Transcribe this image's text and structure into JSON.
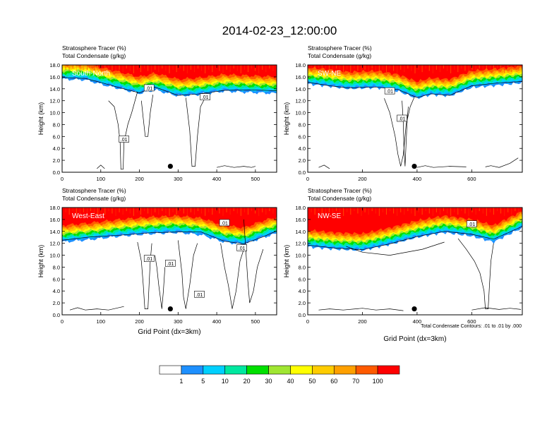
{
  "figure": {
    "title": "2014-02-23_12:00:00",
    "contour_note": "Total Condensate Contours: .01 to .01 by .000"
  },
  "chart_data": [
    {
      "type": "heatmap",
      "id": "south-north",
      "panel_label": "South-North",
      "subtitle_line1": "Stratosphere Tracer   (%)",
      "subtitle_line2": "Total Condensate   (g/kg)",
      "ylabel": "Height (km)",
      "xlabel": "",
      "xlim": [
        0,
        555
      ],
      "ylim": [
        0,
        18
      ],
      "xticks": [
        0,
        100,
        200,
        300,
        400,
        500
      ],
      "yticks": [
        "0.0",
        "2.0",
        "4.0",
        "6.0",
        "8.0",
        "10.0",
        "12.0",
        "14.0",
        "16.0",
        "18.0"
      ],
      "contour_labels": [
        ".01",
        ".01",
        ".01"
      ],
      "marker": {
        "x": 280,
        "y": 1.0
      },
      "band": [
        {
          "x": 0,
          "y": 15.6
        },
        {
          "x": 60,
          "y": 15.5
        },
        {
          "x": 110,
          "y": 14.6
        },
        {
          "x": 150,
          "y": 14.0
        },
        {
          "x": 200,
          "y": 13.2
        },
        {
          "x": 240,
          "y": 13.8
        },
        {
          "x": 300,
          "y": 12.8
        },
        {
          "x": 350,
          "y": 13.0
        },
        {
          "x": 420,
          "y": 13.6
        },
        {
          "x": 480,
          "y": 13.4
        },
        {
          "x": 555,
          "y": 13.2
        }
      ]
    },
    {
      "type": "heatmap",
      "id": "sw-ne",
      "panel_label": "SW-NE",
      "subtitle_line1": "Stratosphere Tracer   (%)",
      "subtitle_line2": "Total Condensate   (g/kg)",
      "ylabel": "Height (km)",
      "xlabel": "",
      "xlim": [
        0,
        785
      ],
      "ylim": [
        0,
        18
      ],
      "xticks": [
        0,
        200,
        400,
        600
      ],
      "yticks": [
        "0.0",
        "2.0",
        "4.0",
        "6.0",
        "8.0",
        "10.0",
        "12.0",
        "14.0",
        "16.0",
        "18.0"
      ],
      "contour_labels": [
        ".01",
        ".01"
      ],
      "marker": {
        "x": 390,
        "y": 1.0
      },
      "band": [
        {
          "x": 0,
          "y": 14.8
        },
        {
          "x": 80,
          "y": 14.4
        },
        {
          "x": 150,
          "y": 14.0
        },
        {
          "x": 250,
          "y": 14.2
        },
        {
          "x": 330,
          "y": 13.6
        },
        {
          "x": 400,
          "y": 12.4
        },
        {
          "x": 450,
          "y": 13.0
        },
        {
          "x": 520,
          "y": 12.8
        },
        {
          "x": 600,
          "y": 14.2
        },
        {
          "x": 700,
          "y": 14.6
        },
        {
          "x": 785,
          "y": 15.0
        }
      ]
    },
    {
      "type": "heatmap",
      "id": "west-east",
      "panel_label": "West-East",
      "subtitle_line1": "Stratosphere Tracer   (%)",
      "subtitle_line2": "Total Condensate   (g/kg)",
      "ylabel": "Height (km)",
      "xlabel": "Grid Point (dx=3km)",
      "xlim": [
        0,
        555
      ],
      "ylim": [
        0,
        18
      ],
      "xticks": [
        0,
        100,
        200,
        300,
        400,
        500
      ],
      "yticks": [
        "0.0",
        "2.0",
        "4.0",
        "6.0",
        "8.0",
        "10.0",
        "12.0",
        "14.0",
        "16.0",
        "18.0"
      ],
      "contour_labels": [
        ".01",
        ".01",
        ".01",
        ".01",
        ".01"
      ],
      "marker": {
        "x": 280,
        "y": 1.0
      },
      "band": [
        {
          "x": 0,
          "y": 12.2
        },
        {
          "x": 70,
          "y": 12.6
        },
        {
          "x": 150,
          "y": 13.2
        },
        {
          "x": 230,
          "y": 13.6
        },
        {
          "x": 300,
          "y": 13.8
        },
        {
          "x": 360,
          "y": 13.4
        },
        {
          "x": 420,
          "y": 12.2
        },
        {
          "x": 470,
          "y": 11.8
        },
        {
          "x": 520,
          "y": 13.0
        },
        {
          "x": 555,
          "y": 13.6
        }
      ]
    },
    {
      "type": "heatmap",
      "id": "nw-se",
      "panel_label": "NW-SE",
      "subtitle_line1": "Stratosphere Tracer   (%)",
      "subtitle_line2": "Total Condensate   (g/kg)",
      "ylabel": "Height (km)",
      "xlabel": "Grid Point (dx=3km)",
      "xlim": [
        0,
        785
      ],
      "ylim": [
        0,
        18
      ],
      "xticks": [
        0,
        200,
        400,
        600
      ],
      "yticks": [
        "0.0",
        "2.0",
        "4.0",
        "6.0",
        "8.0",
        "10.0",
        "12.0",
        "14.0",
        "16.0",
        "18.0"
      ],
      "contour_labels": [
        ".01"
      ],
      "marker": {
        "x": 390,
        "y": 1.0
      },
      "band": [
        {
          "x": 0,
          "y": 11.4
        },
        {
          "x": 100,
          "y": 11.0
        },
        {
          "x": 200,
          "y": 10.8
        },
        {
          "x": 300,
          "y": 11.8
        },
        {
          "x": 400,
          "y": 13.0
        },
        {
          "x": 500,
          "y": 13.8
        },
        {
          "x": 600,
          "y": 13.2
        },
        {
          "x": 680,
          "y": 12.2
        },
        {
          "x": 785,
          "y": 14.6
        }
      ]
    }
  ],
  "colorbar": {
    "colors": [
      "#ffffff",
      "#1e90ff",
      "#00d0ff",
      "#00e8a0",
      "#00e000",
      "#a0e632",
      "#ffff00",
      "#ffcc00",
      "#ffa000",
      "#ff5a00",
      "#ff0000"
    ],
    "labels": [
      "1",
      "5",
      "10",
      "20",
      "30",
      "40",
      "50",
      "60",
      "70",
      "100"
    ]
  }
}
